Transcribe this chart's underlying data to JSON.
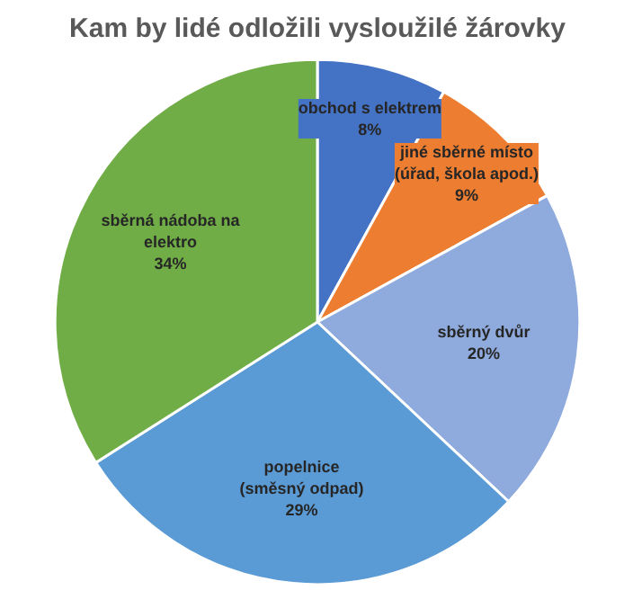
{
  "chart_data": {
    "type": "pie",
    "title": "Kam by lidé odložili vysloužilé žárovky",
    "categories": [
      "obchod s elektrem",
      "jiné sběrné místo\n(úřad, škola apod.)",
      "sběrný dvůr",
      "popelnice\n(směsný odpad)",
      "sběrná nádoba na\nelektro"
    ],
    "values": [
      8,
      9,
      20,
      29,
      34
    ],
    "value_labels": [
      "8%",
      "9%",
      "20%",
      "29%",
      "34%"
    ],
    "colors": [
      "#4472c4",
      "#ed7d31",
      "#8faadc",
      "#5b9bd5",
      "#70ad47"
    ]
  }
}
